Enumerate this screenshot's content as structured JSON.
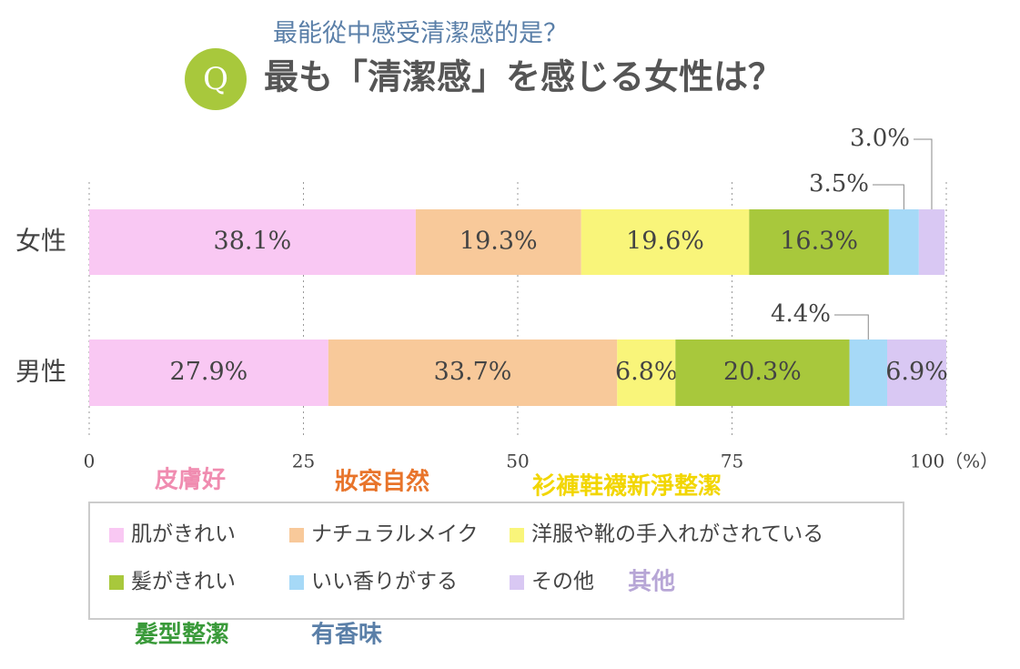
{
  "chart_data": {
    "type": "stacked-bar",
    "subtitle": "最能從中感受清潔感的是？",
    "badge": "Q",
    "title": "最も「清潔感」を感じる女性は？",
    "categories": [
      "女性",
      "男性"
    ],
    "xlim": [
      0,
      100
    ],
    "xticks": [
      0,
      25,
      50,
      75,
      {
        "value": 100,
        "label": "100（%）"
      }
    ],
    "grid": true,
    "series": [
      {
        "name": "肌がきれい",
        "color": "#f9c8f3",
        "values": [
          38.1,
          27.9
        ],
        "value_labels": [
          "38.1%",
          "27.9%"
        ]
      },
      {
        "name": "ナチュラルメイク",
        "color": "#f8c99a",
        "values": [
          19.3,
          33.7
        ],
        "value_labels": [
          "19.3%",
          "33.7%"
        ]
      },
      {
        "name": "洋服や靴の手入れがされている",
        "color": "#f9f57a",
        "values": [
          19.6,
          6.8
        ],
        "value_labels": [
          "19.6%",
          "6.8%"
        ]
      },
      {
        "name": "髪がきれい",
        "color": "#a8c83c",
        "values": [
          16.3,
          20.3
        ],
        "value_labels": [
          "16.3%",
          "20.3%"
        ]
      },
      {
        "name": "いい香りがする",
        "color": "#a6d9f7",
        "values": [
          3.5,
          4.4
        ],
        "value_labels": [
          "3.5%",
          "4.4%"
        ]
      },
      {
        "name": "その他",
        "color": "#d9c8f3",
        "values": [
          3.0,
          6.9
        ],
        "value_labels": [
          "3.0%",
          "6.9%"
        ]
      }
    ],
    "annotations": [
      {
        "text": "皮膚好",
        "color": "#f08cb0"
      },
      {
        "text": "妝容自然",
        "color": "#e8742a"
      },
      {
        "text": "衫褲鞋襪新淨整潔",
        "color": "#f2d600"
      },
      {
        "text": "其他",
        "color": "#b7a6d6"
      },
      {
        "text": "髮型整潔",
        "color": "#3a9a3a"
      },
      {
        "text": "有香味",
        "color": "#5a7fa8"
      }
    ]
  }
}
